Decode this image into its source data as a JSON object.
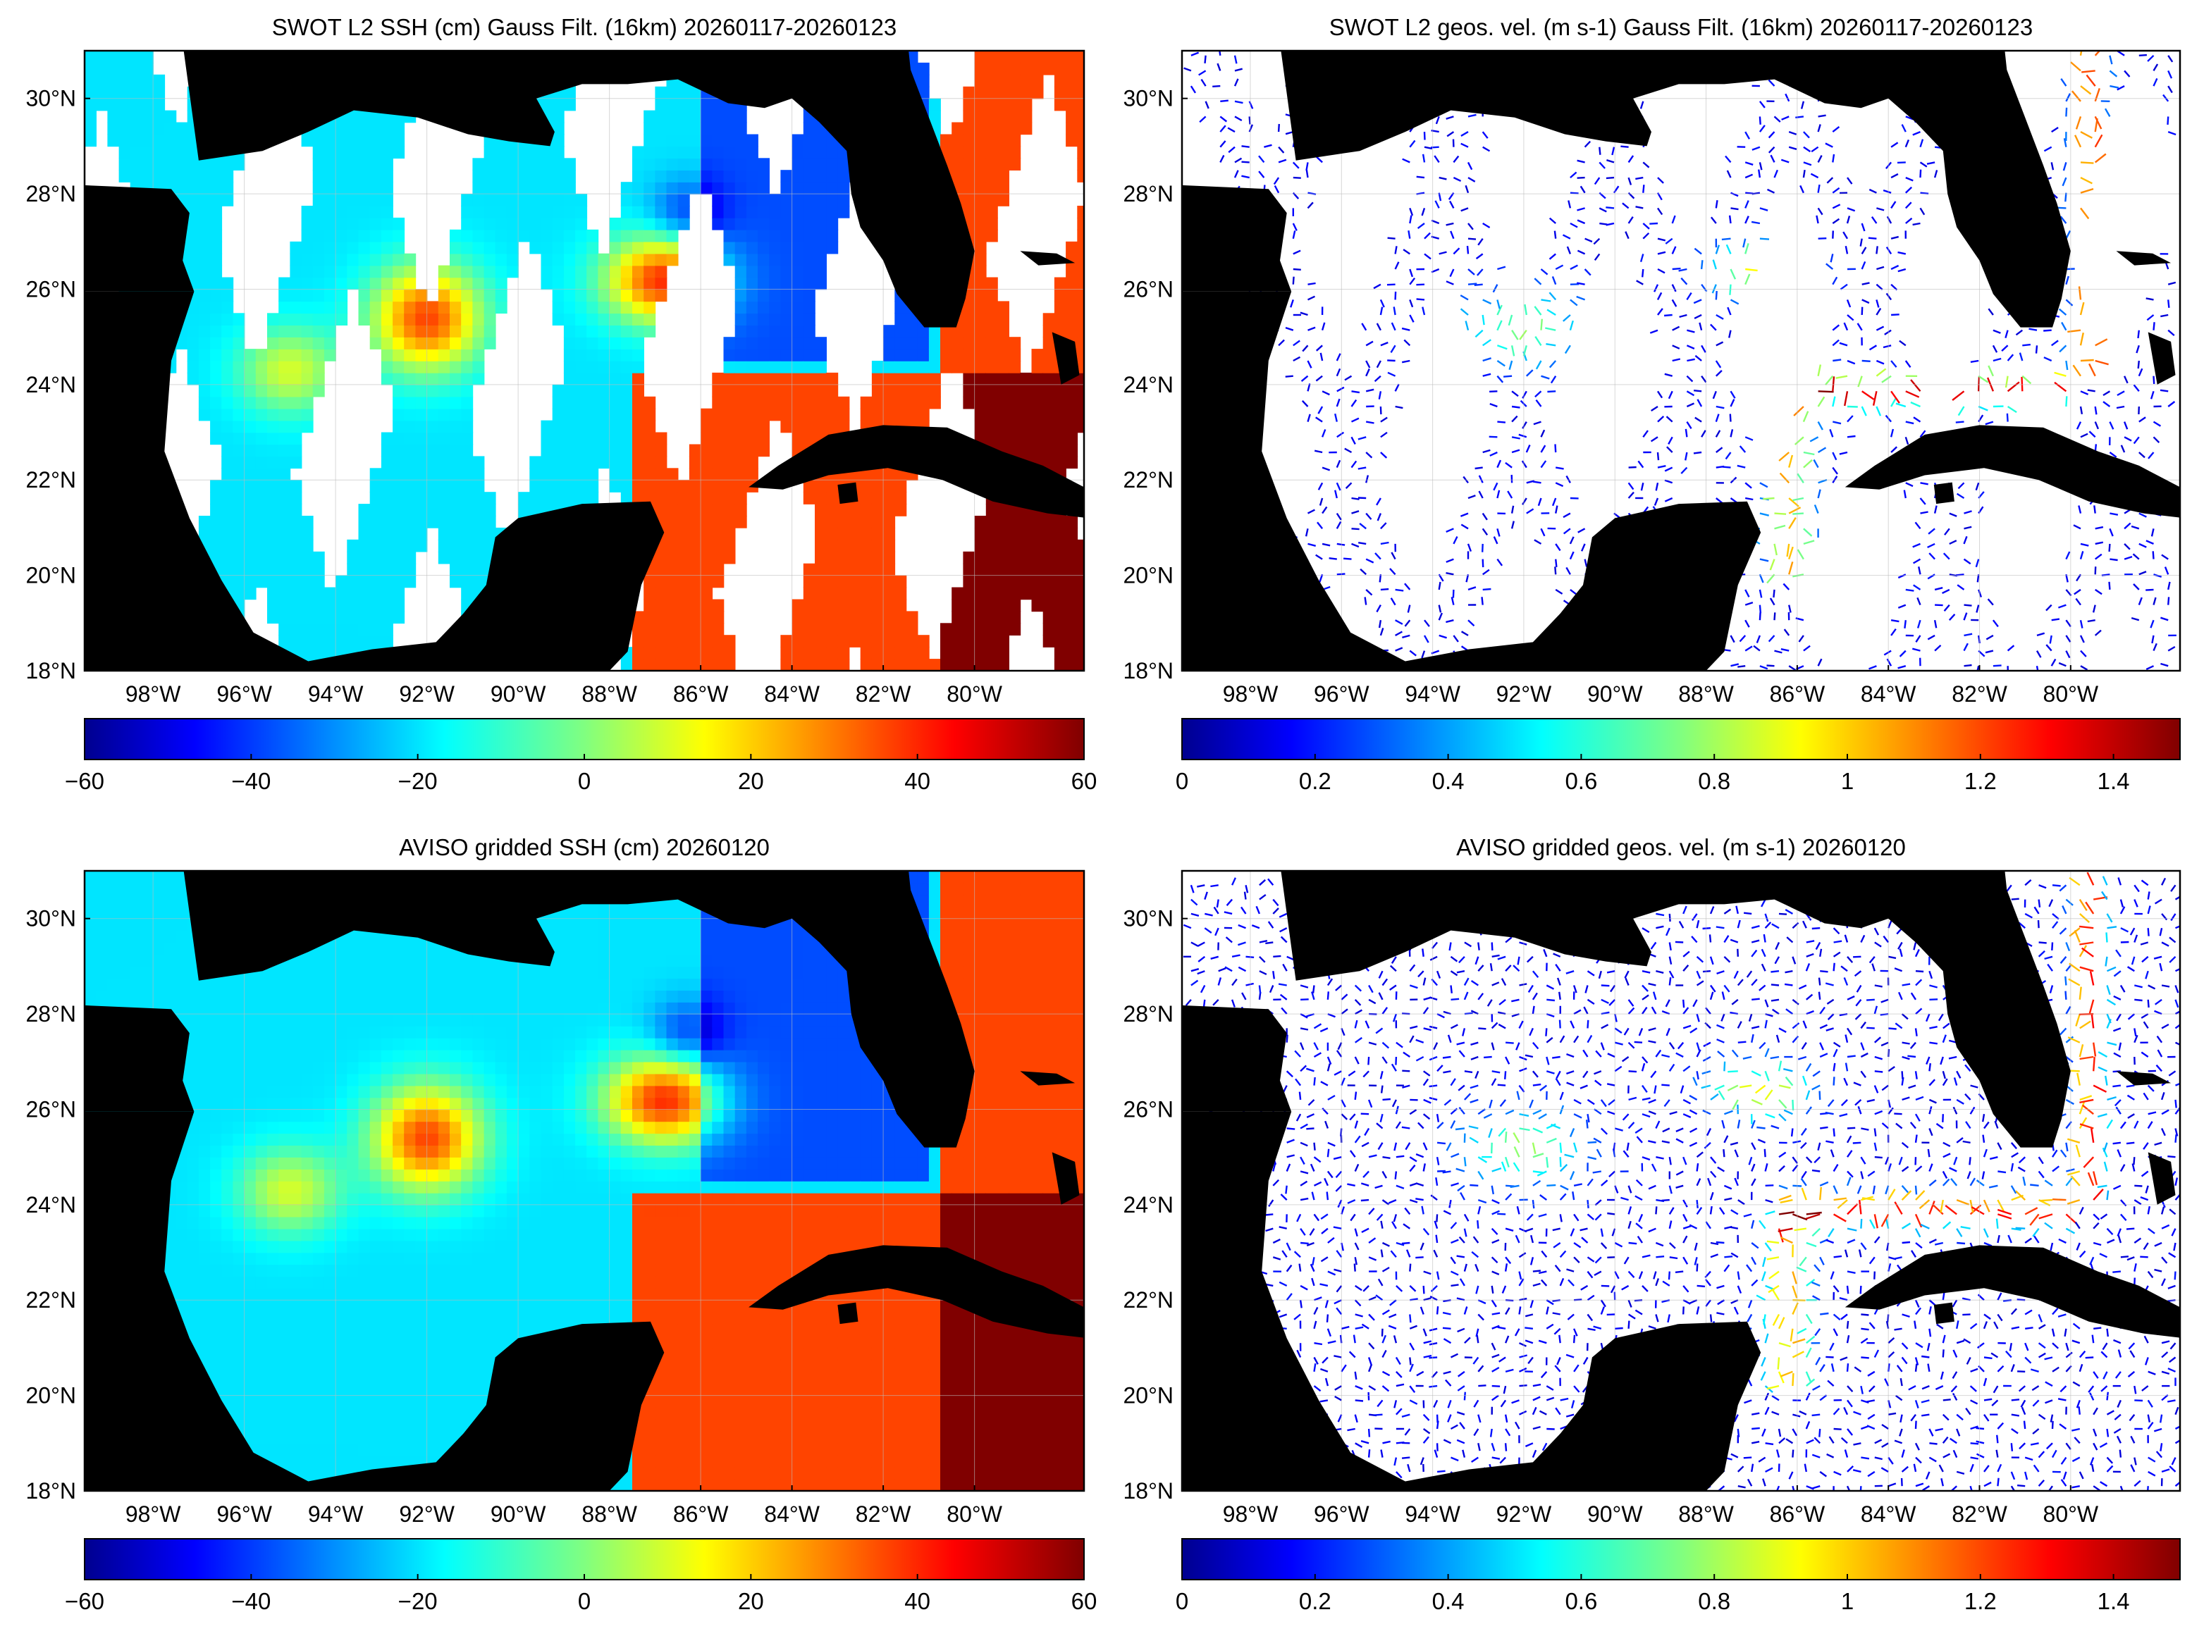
{
  "panels": [
    {
      "id": "swot-ssh",
      "title": "SWOT L2 SSH (cm) Gauss Filt. (16km) 20260117-20260123",
      "kind": "ssh-swaths",
      "colorbar": {
        "min": -60,
        "max": 60,
        "ticks": [
          "−60",
          "−40",
          "−20",
          "0",
          "20",
          "40",
          "60"
        ]
      }
    },
    {
      "id": "swot-vel",
      "title": "SWOT L2 geos. vel. (m s-1) Gauss Filt. (16km) 20260117-20260123",
      "kind": "vel-swaths",
      "colorbar": {
        "min": 0,
        "max": 1.5,
        "ticks": [
          "0",
          "0.2",
          "0.4",
          "0.6",
          "0.8",
          "1",
          "1.2",
          "1.4"
        ]
      }
    },
    {
      "id": "aviso-ssh",
      "title": "AVISO gridded SSH (cm) 20260120",
      "kind": "ssh-grid",
      "colorbar": {
        "min": -60,
        "max": 60,
        "ticks": [
          "−60",
          "−40",
          "−20",
          "0",
          "20",
          "40",
          "60"
        ]
      }
    },
    {
      "id": "aviso-vel",
      "title": "AVISO gridded geos. vel. (m s-1)  20260120",
      "kind": "vel-grid",
      "colorbar": {
        "min": 0,
        "max": 1.5,
        "ticks": [
          "0",
          "0.2",
          "0.4",
          "0.6",
          "0.8",
          "1",
          "1.2",
          "1.4"
        ]
      }
    }
  ],
  "map": {
    "lon_range": [
      -99.5,
      -77.6
    ],
    "lat_range": [
      18,
      31
    ],
    "lat_ticks": [
      {
        "value": 18,
        "label": "18°N"
      },
      {
        "value": 20,
        "label": "20°N"
      },
      {
        "value": 22,
        "label": "22°N"
      },
      {
        "value": 24,
        "label": "24°N"
      },
      {
        "value": 26,
        "label": "26°N"
      },
      {
        "value": 28,
        "label": "28°N"
      },
      {
        "value": 30,
        "label": "30°N"
      }
    ],
    "lon_ticks": [
      {
        "value": -98,
        "label": "98°W"
      },
      {
        "value": -96,
        "label": "96°W"
      },
      {
        "value": -94,
        "label": "94°W"
      },
      {
        "value": -92,
        "label": "92°W"
      },
      {
        "value": -90,
        "label": "90°W"
      },
      {
        "value": -88,
        "label": "88°W"
      },
      {
        "value": -86,
        "label": "86°W"
      },
      {
        "value": -84,
        "label": "84°W"
      },
      {
        "value": -82,
        "label": "82°W"
      },
      {
        "value": -80,
        "label": "80°W"
      }
    ],
    "land_color": "#000000",
    "colormap": "jet"
  }
}
